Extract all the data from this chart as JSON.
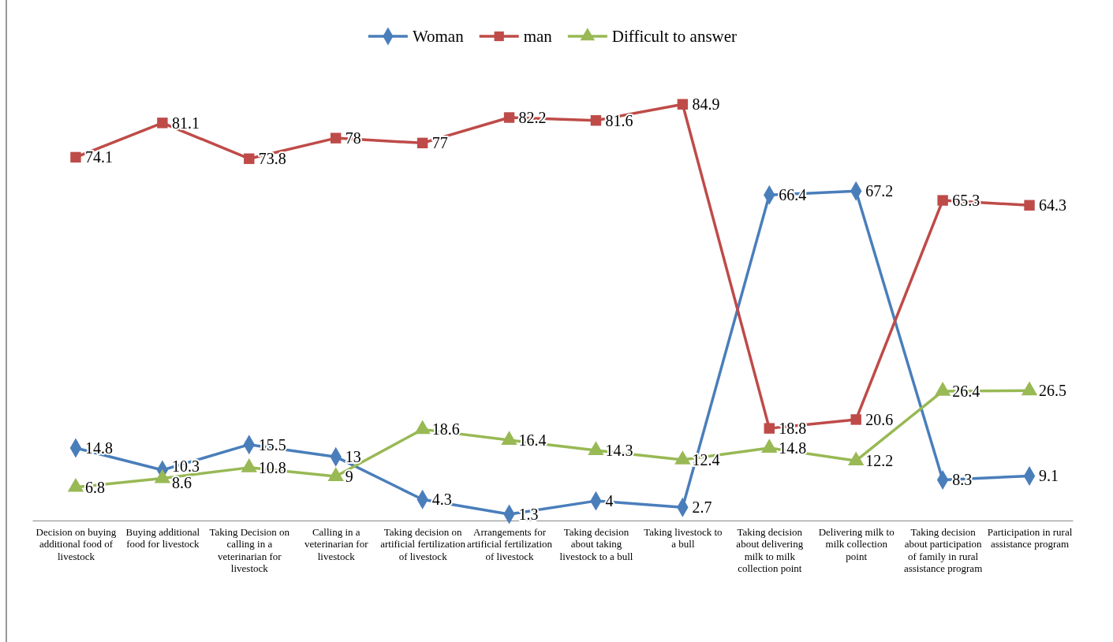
{
  "chart_data": {
    "type": "line",
    "categories": [
      "Decision on buying additional food of livestock",
      "Buying additional food for livestock",
      "Taking Decision on calling in a veterinarian for livestock",
      "Calling in a veterinarian for livestock",
      "Taking decision on artificial fertilization of livestock",
      "Arrangements for artificial fertilization of livestock",
      "Taking decision about taking livestock to a bull",
      "Taking livestock to a bull",
      "Taking decision about delivering milk to milk collection point",
      "Delivering milk to milk collection point",
      "Taking decision about participation of family in rural assistance program",
      "Participation in rural assistance program"
    ],
    "series": [
      {
        "name": "Woman",
        "color": "#4a7ebb",
        "marker": "diamond",
        "values": [
          14.8,
          10.3,
          15.5,
          13,
          4.3,
          1.3,
          4,
          2.7,
          66.4,
          67.2,
          8.3,
          9.1
        ]
      },
      {
        "name": "man",
        "color": "#be4b48",
        "marker": "square",
        "values": [
          74.1,
          81.1,
          73.8,
          78,
          77,
          82.2,
          81.6,
          84.9,
          18.8,
          20.6,
          65.3,
          64.3
        ]
      },
      {
        "name": "Difficult to answer",
        "color": "#98b954",
        "marker": "triangle",
        "values": [
          6.8,
          8.6,
          10.8,
          9,
          18.6,
          16.4,
          14.3,
          12.4,
          14.8,
          12.2,
          26.4,
          26.5
        ]
      }
    ],
    "data_labels": true,
    "legend": "top"
  }
}
